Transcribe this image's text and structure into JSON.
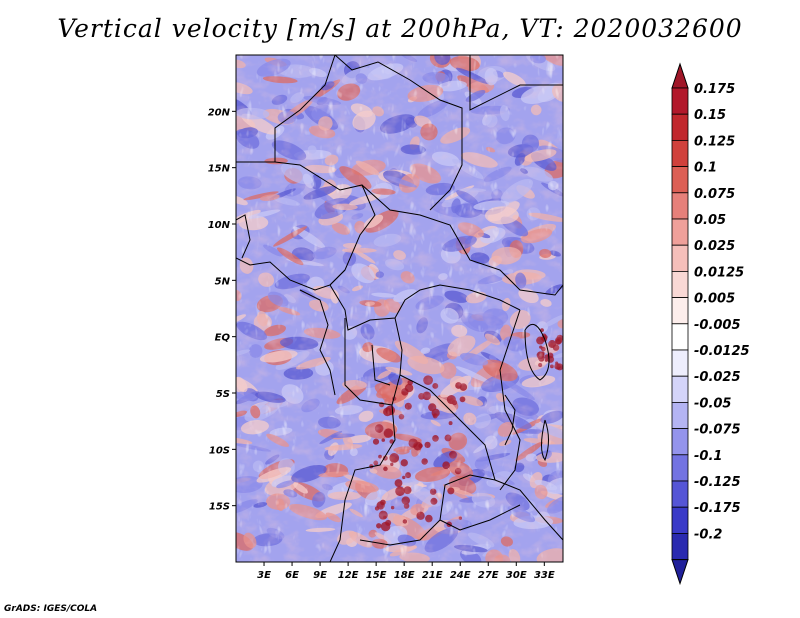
{
  "chart_data": {
    "type": "heatmap",
    "title": "Vertical velocity [m/s] at 200hPa, VT: 2020032600",
    "variable": "Vertical velocity",
    "units": "m/s",
    "level": "200hPa",
    "valid_time": "2020032600",
    "x_axis": {
      "label": "",
      "range_deg": [
        0,
        35
      ],
      "ticks": [
        {
          "value": 3,
          "label": "3E"
        },
        {
          "value": 6,
          "label": "6E"
        },
        {
          "value": 9,
          "label": "9E"
        },
        {
          "value": 12,
          "label": "12E"
        },
        {
          "value": 15,
          "label": "15E"
        },
        {
          "value": 18,
          "label": "18E"
        },
        {
          "value": 21,
          "label": "21E"
        },
        {
          "value": 24,
          "label": "24E"
        },
        {
          "value": 27,
          "label": "27E"
        },
        {
          "value": 30,
          "label": "30E"
        },
        {
          "value": 33,
          "label": "33E"
        }
      ]
    },
    "y_axis": {
      "label": "",
      "range_deg": [
        -20,
        25
      ],
      "ticks": [
        {
          "value": 20,
          "label": "20N"
        },
        {
          "value": 15,
          "label": "15N"
        },
        {
          "value": 10,
          "label": "10N"
        },
        {
          "value": 5,
          "label": "5N"
        },
        {
          "value": 0,
          "label": "EQ"
        },
        {
          "value": -5,
          "label": "5S"
        },
        {
          "value": -10,
          "label": "10S"
        },
        {
          "value": -15,
          "label": "15S"
        }
      ]
    },
    "colorbar": {
      "levels": [
        {
          "label": "0.175",
          "color": "#b2182b"
        },
        {
          "label": "0.15",
          "color": "#c1272d"
        },
        {
          "label": "0.125",
          "color": "#d0413c"
        },
        {
          "label": "0.1",
          "color": "#dc5f55"
        },
        {
          "label": "0.075",
          "color": "#e6807a"
        },
        {
          "label": "0.05",
          "color": "#efa09a"
        },
        {
          "label": "0.025",
          "color": "#f5bfba"
        },
        {
          "label": "0.0125",
          "color": "#f9d8d5"
        },
        {
          "label": "0.005",
          "color": "#fdeeec"
        },
        {
          "label": "-0.005",
          "color": "#ffffff"
        },
        {
          "label": "-0.0125",
          "color": "#eeeefd"
        },
        {
          "label": "-0.025",
          "color": "#d4d4f9"
        },
        {
          "label": "-0.05",
          "color": "#b4b4f3"
        },
        {
          "label": "-0.075",
          "color": "#9494ec"
        },
        {
          "label": "-0.1",
          "color": "#7373e2"
        },
        {
          "label": "-0.125",
          "color": "#5555d6"
        },
        {
          "label": "-0.175",
          "color": "#3a3ac8"
        },
        {
          "label": "-0.2",
          "color": "#2a2ab0"
        }
      ],
      "extend_top_color": "#a01628",
      "extend_bottom_color": "#20209a"
    },
    "credit": "GrADS: IGES/COLA"
  }
}
